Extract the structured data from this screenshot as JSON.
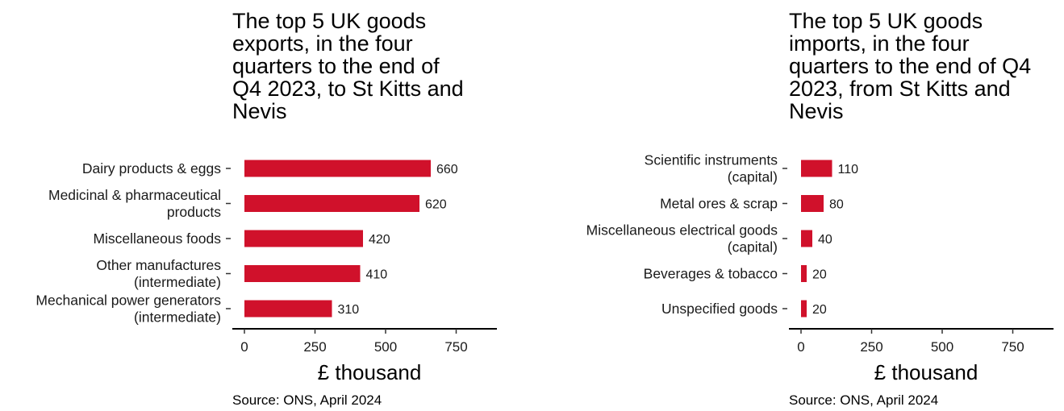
{
  "chart_data": [
    {
      "type": "bar",
      "orientation": "horizontal",
      "title": "The top 5 UK goods\nexports, in the four\nquarters to the end of\nQ4 2023, to St Kitts and\nNevis",
      "categories": [
        [
          "Dairy products & eggs"
        ],
        [
          "Medicinal & pharmaceutical",
          "products"
        ],
        [
          "Miscellaneous foods"
        ],
        [
          "Other manufactures",
          "(intermediate)"
        ],
        [
          "Mechanical power generators",
          "(intermediate)"
        ]
      ],
      "values": [
        660,
        620,
        420,
        410,
        310
      ],
      "value_labels": [
        "660",
        "620",
        "420",
        "410",
        "310"
      ],
      "xlabel": "£ thousand",
      "xlim": [
        0,
        900
      ],
      "xticks": [
        0,
        250,
        500,
        750
      ],
      "xtick_labels": [
        "0",
        "250",
        "500",
        "750"
      ],
      "grid": false,
      "legend": "none",
      "bar_color": "#d0112b",
      "source": "Source: ONS, April 2024"
    },
    {
      "type": "bar",
      "orientation": "horizontal",
      "title": "The top 5 UK goods\nimports, in the four\nquarters to the end of Q4\n2023, from St Kitts and\nNevis",
      "categories": [
        [
          "Scientific instruments",
          "(capital)"
        ],
        [
          "Metal ores & scrap"
        ],
        [
          "Miscellaneous electrical goods",
          "(capital)"
        ],
        [
          "Beverages & tobacco"
        ],
        [
          "Unspecified goods"
        ]
      ],
      "values": [
        110,
        80,
        40,
        20,
        20
      ],
      "value_labels": [
        "110",
        "80",
        "40",
        "20",
        "20"
      ],
      "xlabel": "£ thousand",
      "xlim": [
        0,
        900
      ],
      "xticks": [
        0,
        250,
        500,
        750
      ],
      "xtick_labels": [
        "0",
        "250",
        "500",
        "750"
      ],
      "grid": false,
      "legend": "none",
      "bar_color": "#d0112b",
      "source": "Source: ONS, April 2024"
    }
  ]
}
